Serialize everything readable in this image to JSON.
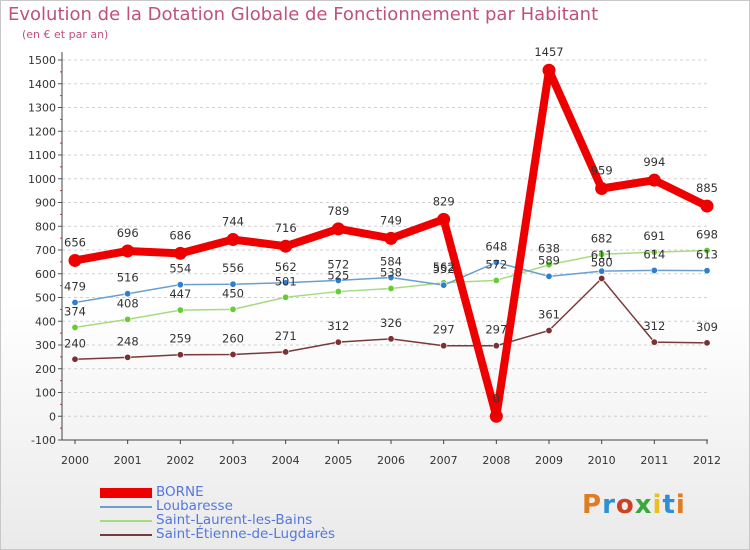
{
  "header": {
    "title": "Evolution de la Dotation Globale de Fonctionnement par Habitant",
    "subtitle": "(en € et par an)"
  },
  "logo": {
    "text": "Proxiti",
    "colors": [
      "#e07b20",
      "#2f8fd0",
      "#d04020",
      "#3aa83a",
      "#e8c020",
      "#2f8fd0",
      "#e07b20"
    ]
  },
  "chart_data": {
    "type": "line",
    "title": "Evolution de la Dotation Globale de Fonctionnement par Habitant",
    "subtitle": "(en € et par an)",
    "x": [
      "2000",
      "2001",
      "2002",
      "2003",
      "2004",
      "2005",
      "2006",
      "2007",
      "2008",
      "2009",
      "2010",
      "2011",
      "2012"
    ],
    "ylim": [
      -100,
      1500
    ],
    "yticks": [
      "-100",
      "0",
      "100",
      "200",
      "300",
      "400",
      "500",
      "600",
      "700",
      "800",
      "900",
      "1000",
      "1100",
      "1200",
      "1300",
      "1400",
      "1500"
    ],
    "grid": "horizontal dashed",
    "legend": "bottom-left",
    "series": [
      {
        "name": "BORNE",
        "color": "#ee0000",
        "values": [
          656,
          696,
          686,
          744,
          716,
          789,
          749,
          829,
          0,
          1457,
          959,
          994,
          885
        ],
        "labels": [
          "656",
          "696",
          "686",
          "744",
          "716",
          "789",
          "749",
          "829",
          "0",
          "1457",
          "959",
          "994",
          "885"
        ]
      },
      {
        "name": "Loubaresse",
        "color": "#6a9fd0",
        "marker": "#2f7fd0",
        "values": [
          479,
          516,
          554,
          556,
          562,
          572,
          584,
          552,
          648,
          589,
          611,
          614,
          613
        ],
        "labels": [
          "479",
          "516",
          "554",
          "556",
          "562",
          "572",
          "584",
          "552",
          "648",
          "589",
          "611",
          "614",
          "613"
        ]
      },
      {
        "name": "Saint-Laurent-les-Bains",
        "color": "#a6dc80",
        "marker": "#66cc33",
        "values": [
          374,
          408,
          447,
          450,
          501,
          525,
          538,
          562,
          572,
          638,
          682,
          691,
          698
        ],
        "labels": [
          "374",
          "408",
          "447",
          "450",
          "501",
          "525",
          "538",
          "562",
          "572",
          "638",
          "682",
          "691",
          "698"
        ]
      },
      {
        "name": "Saint-Étienne-de-Lugdarès",
        "color": "#7a3a3a",
        "marker": "#7a3030",
        "values": [
          240,
          248,
          259,
          260,
          271,
          312,
          326,
          297,
          297,
          361,
          580,
          312,
          309
        ],
        "labels": [
          "240",
          "248",
          "259",
          "260",
          "271",
          "312",
          "326",
          "297",
          "297",
          "361",
          "580",
          "312",
          "309"
        ]
      }
    ]
  }
}
